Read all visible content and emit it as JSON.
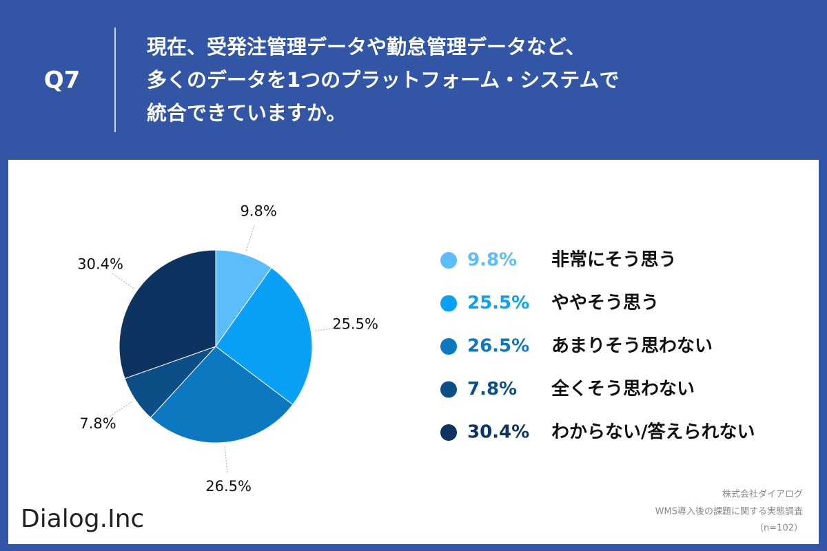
{
  "header": {
    "label": "Q7",
    "question": [
      "現在、受発注管理データや勤怠管理データなど、",
      "多くのデータを1つのプラットフォーム・システムで",
      "統合できていますか。"
    ]
  },
  "chart_data": {
    "type": "pie",
    "categories": [
      "非常にそう思う",
      "ややそう思う",
      "あまりそう思わない",
      "全くそう思わない",
      "わからない/答えられない"
    ],
    "values": [
      9.8,
      25.5,
      26.5,
      7.8,
      30.4
    ],
    "value_labels": [
      "9.8%",
      "25.5%",
      "26.5%",
      "7.8%",
      "30.4%"
    ],
    "colors": [
      "#5cbdfb",
      "#0aa0f5",
      "#0b78c0",
      "#0b4f86",
      "#0d3461"
    ]
  },
  "footer": {
    "logo": "Dialog.Inc",
    "source": [
      "株式会社ダイアログ",
      "WMS導入後の課題に関する実態調査",
      "（n=102）"
    ]
  }
}
